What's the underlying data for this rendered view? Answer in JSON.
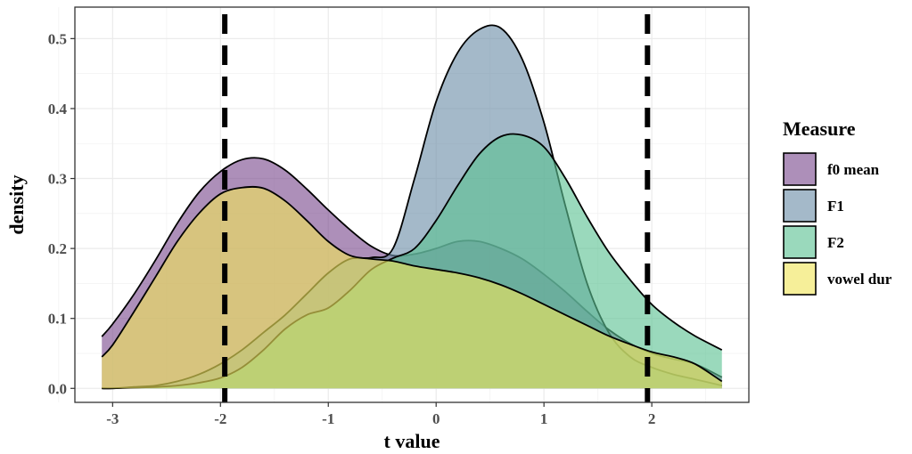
{
  "chart_data": {
    "type": "area",
    "xlabel": "t value",
    "ylabel": "density",
    "xlim": [
      -3.35,
      2.9
    ],
    "ylim": [
      -0.02,
      0.545
    ],
    "x_ticks": [
      -3,
      -2,
      -1,
      0,
      1,
      2
    ],
    "x_tick_labels": [
      "-3",
      "-2",
      "-1",
      "0",
      "1",
      "2"
    ],
    "y_ticks": [
      0.0,
      0.1,
      0.2,
      0.3,
      0.4,
      0.5
    ],
    "y_tick_labels": [
      "0.0",
      "0.1",
      "0.2",
      "0.3",
      "0.4",
      "0.5"
    ],
    "reference_lines_x": [
      -1.96,
      1.96
    ],
    "grid": true,
    "legend_position": "right",
    "legend_title": "Measure",
    "x": [
      -3.1,
      -3.0,
      -2.8,
      -2.6,
      -2.4,
      -2.2,
      -2.0,
      -1.8,
      -1.6,
      -1.4,
      -1.2,
      -1.0,
      -0.8,
      -0.6,
      -0.4,
      -0.2,
      0.0,
      0.2,
      0.4,
      0.6,
      0.8,
      1.0,
      1.2,
      1.4,
      1.6,
      1.8,
      2.0,
      2.2,
      2.4,
      2.65
    ],
    "series": [
      {
        "name": "f0 mean",
        "color": "#7a4b8e",
        "values": [
          0.074,
          0.092,
          0.135,
          0.184,
          0.236,
          0.28,
          0.31,
          0.327,
          0.328,
          0.312,
          0.285,
          0.255,
          0.227,
          0.203,
          0.19,
          0.192,
          0.2,
          0.21,
          0.21,
          0.2,
          0.185,
          0.163,
          0.138,
          0.11,
          0.084,
          0.064,
          0.05,
          0.042,
          0.035,
          0.016
        ]
      },
      {
        "name": "F1",
        "color": "#6c8ea8",
        "values": [
          0.0,
          0.0,
          0.002,
          0.004,
          0.01,
          0.02,
          0.035,
          0.055,
          0.08,
          0.105,
          0.135,
          0.165,
          0.185,
          0.187,
          0.2,
          0.3,
          0.41,
          0.48,
          0.513,
          0.515,
          0.47,
          0.38,
          0.26,
          0.15,
          0.08,
          0.045,
          0.03,
          0.02,
          0.013,
          0.004
        ]
      },
      {
        "name": "F2",
        "color": "#5cc193",
        "values": [
          0.0,
          0.0,
          0.001,
          0.002,
          0.004,
          0.008,
          0.015,
          0.03,
          0.055,
          0.085,
          0.105,
          0.115,
          0.14,
          0.17,
          0.186,
          0.2,
          0.24,
          0.29,
          0.335,
          0.36,
          0.362,
          0.345,
          0.3,
          0.245,
          0.195,
          0.155,
          0.12,
          0.095,
          0.075,
          0.055
        ]
      },
      {
        "name": "vowel dur",
        "color": "#f0e55a",
        "values": [
          0.045,
          0.062,
          0.11,
          0.16,
          0.21,
          0.25,
          0.278,
          0.287,
          0.286,
          0.268,
          0.24,
          0.21,
          0.19,
          0.185,
          0.182,
          0.175,
          0.17,
          0.165,
          0.158,
          0.148,
          0.135,
          0.12,
          0.105,
          0.09,
          0.075,
          0.063,
          0.052,
          0.045,
          0.035,
          0.01
        ]
      }
    ]
  }
}
